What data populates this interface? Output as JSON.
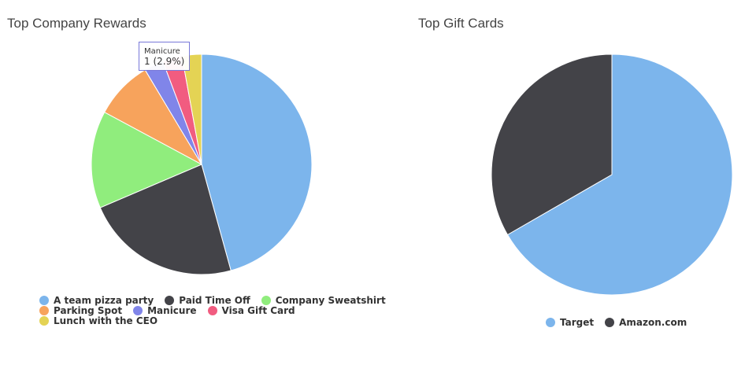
{
  "chart_data": [
    {
      "type": "pie",
      "title": "Top Company Rewards",
      "labels": [
        "A team pizza party",
        "Paid Time Off",
        "Company Sweatshirt",
        "Parking Spot",
        "Manicure",
        "Visa Gift Card",
        "Lunch with the CEO"
      ],
      "values": [
        16,
        8,
        5,
        3,
        1,
        1,
        1
      ],
      "colors": [
        "#7cb5ec",
        "#434348",
        "#90ed7d",
        "#f7a35c",
        "#8085e9",
        "#f15c80",
        "#e4d354"
      ],
      "legend_position": "bottom-left",
      "tooltip": {
        "name": "Manicure",
        "value": "1 (2.9%)"
      }
    },
    {
      "type": "pie",
      "title": "Top Gift Cards",
      "labels": [
        "Target",
        "Amazon.com"
      ],
      "values": [
        2,
        1
      ],
      "colors": [
        "#7cb5ec",
        "#434348"
      ],
      "legend_position": "bottom-center"
    }
  ]
}
